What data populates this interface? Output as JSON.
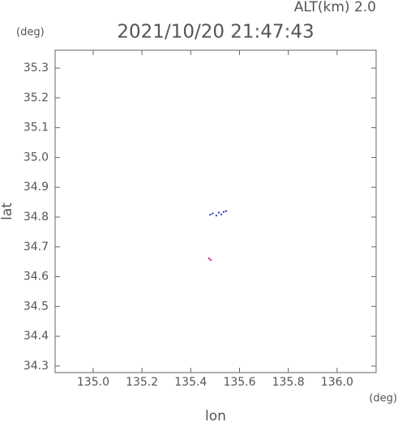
{
  "chart_data": {
    "type": "scatter",
    "title": "2021/10/20 21:47:43",
    "altitude": "ALT(km) 2.0",
    "y_unit": "(deg)",
    "x_unit": "(deg)",
    "xlabel": "lon",
    "ylabel": "lat",
    "xlim": [
      134.844,
      136.16
    ],
    "ylim": [
      34.278,
      35.36
    ],
    "xticks": [
      {
        "value": 135.0,
        "label": "135.0"
      },
      135.2,
      135.4,
      135.6,
      135.8,
      {
        "value": 136.0,
        "label": "136.0"
      }
    ],
    "yticks": [
      35.3,
      35.2,
      35.1,
      {
        "value": 35.0,
        "label": "35.0"
      },
      34.9,
      34.8,
      34.7,
      34.6,
      34.5,
      34.4,
      34.3
    ],
    "series": [
      {
        "color": "#3344cc",
        "x": [
          135.48,
          135.49,
          135.505,
          135.515,
          135.525,
          135.535,
          135.545
        ],
        "y": [
          34.808,
          34.812,
          34.805,
          34.815,
          34.809,
          34.817,
          34.82
        ]
      },
      {
        "color": "#cc2299",
        "x": [
          135.475,
          135.482
        ],
        "y": [
          34.661,
          34.656
        ]
      }
    ]
  }
}
